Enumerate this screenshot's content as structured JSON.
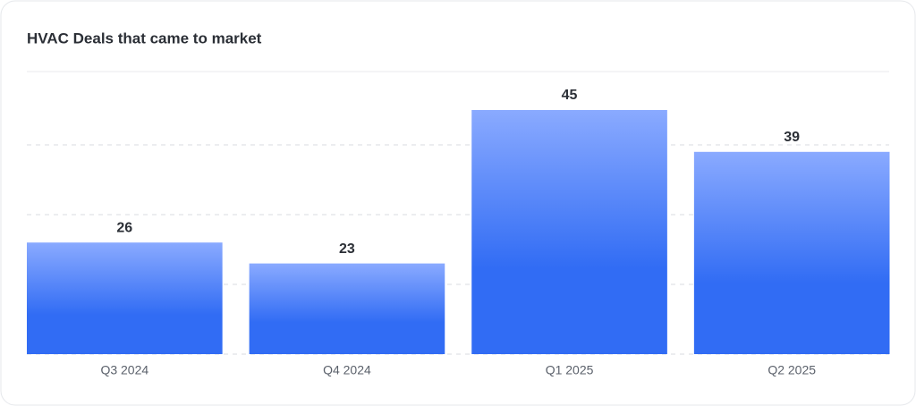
{
  "chart_data": {
    "type": "bar",
    "title": "HVAC Deals that came to market",
    "categories": [
      "Q3 2024",
      "Q4 2024",
      "Q1 2025",
      "Q2 2025"
    ],
    "values": [
      26,
      23,
      45,
      39
    ],
    "color": "#316cf4",
    "ylim": [
      10,
      50
    ],
    "yticks": [
      10,
      20,
      30,
      40
    ],
    "grid": true
  }
}
